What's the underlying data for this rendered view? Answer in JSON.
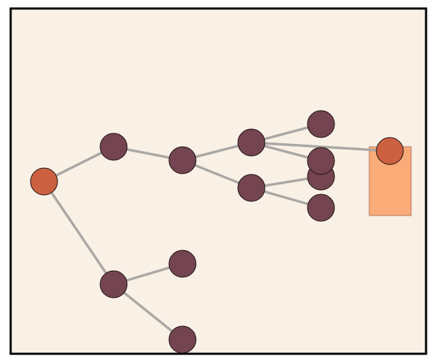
{
  "colors": {
    "background": "#f9f0e6",
    "frame": "#000000",
    "edge": "#aaa8a4",
    "node": "#744550",
    "highlight_node": "#cb6140",
    "target_box": "#fbab78"
  },
  "graph": {
    "nodes": [
      {
        "id": "root",
        "kind": "highlight"
      },
      {
        "id": "a",
        "kind": "normal"
      },
      {
        "id": "b",
        "kind": "normal"
      },
      {
        "id": "c",
        "kind": "normal"
      },
      {
        "id": "d",
        "kind": "normal"
      },
      {
        "id": "e",
        "kind": "normal"
      },
      {
        "id": "f",
        "kind": "normal"
      },
      {
        "id": "g",
        "kind": "normal"
      },
      {
        "id": "h",
        "kind": "normal"
      },
      {
        "id": "i",
        "kind": "normal"
      },
      {
        "id": "j",
        "kind": "normal"
      },
      {
        "id": "k",
        "kind": "normal"
      },
      {
        "id": "goal",
        "kind": "highlight"
      }
    ],
    "edges": [
      [
        "root",
        "a"
      ],
      [
        "a",
        "b"
      ],
      [
        "b",
        "c"
      ],
      [
        "b",
        "d"
      ],
      [
        "c",
        "e"
      ],
      [
        "c",
        "g"
      ],
      [
        "c",
        "goal"
      ],
      [
        "d",
        "f"
      ],
      [
        "d",
        "h"
      ],
      [
        "root",
        "i"
      ],
      [
        "i",
        "j"
      ],
      [
        "i",
        "k"
      ]
    ]
  }
}
